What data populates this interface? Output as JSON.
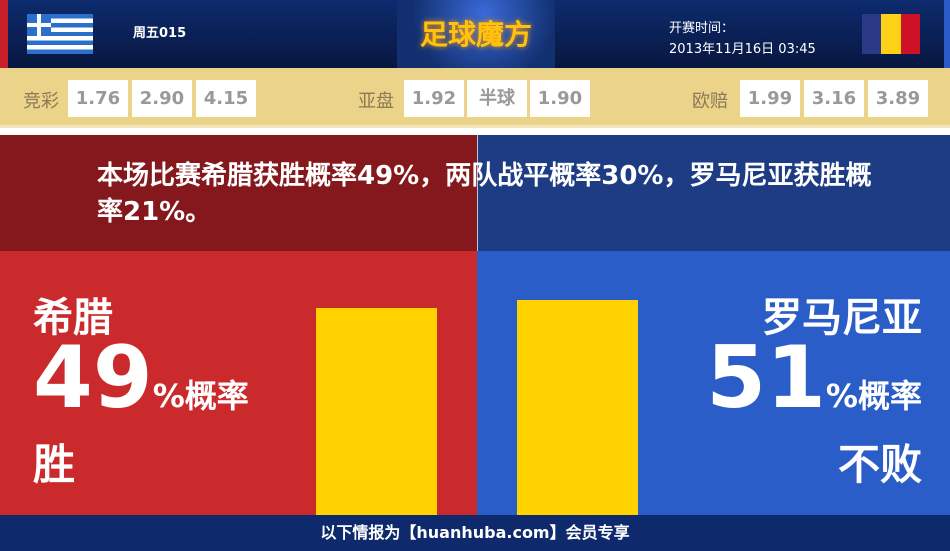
{
  "header": {
    "match_no": "周五015",
    "logo_text": "足球魔方",
    "kickoff_label": "开赛时间：",
    "kickoff_time": "2013年11月16日 03:45",
    "home_flag": "greece-flag",
    "away_flag": "romania-flag",
    "romania_colors": [
      "#2b3a86",
      "#fcd116",
      "#ce1126"
    ]
  },
  "odds": {
    "jingcai": {
      "label": "竞彩",
      "values": [
        "1.76",
        "2.90",
        "4.15"
      ]
    },
    "yapan": {
      "label": "亚盘",
      "values": [
        "1.92",
        "半球",
        "1.90"
      ]
    },
    "oupei": {
      "label": "欧赔",
      "values": [
        "1.99",
        "3.16",
        "3.89"
      ]
    }
  },
  "summary": "本场比赛希腊获胜概率49%，两队战平概率30%，罗马尼亚获胜概率21%。",
  "home": {
    "name": "希腊",
    "percent": "49",
    "percent_suffix": "%概率",
    "outcome": "胜",
    "bar_value": 49
  },
  "away": {
    "name": "罗马尼亚",
    "percent": "51",
    "percent_suffix": "%概率",
    "outcome": "不败",
    "bar_value": 51
  },
  "footer": "以下情报为【huanhuba.com】会员专享",
  "colors": {
    "home": "#cb2a2c",
    "away": "#2b5dc8",
    "bar": "#ffd200",
    "odds_bg": "#ebd38a"
  }
}
